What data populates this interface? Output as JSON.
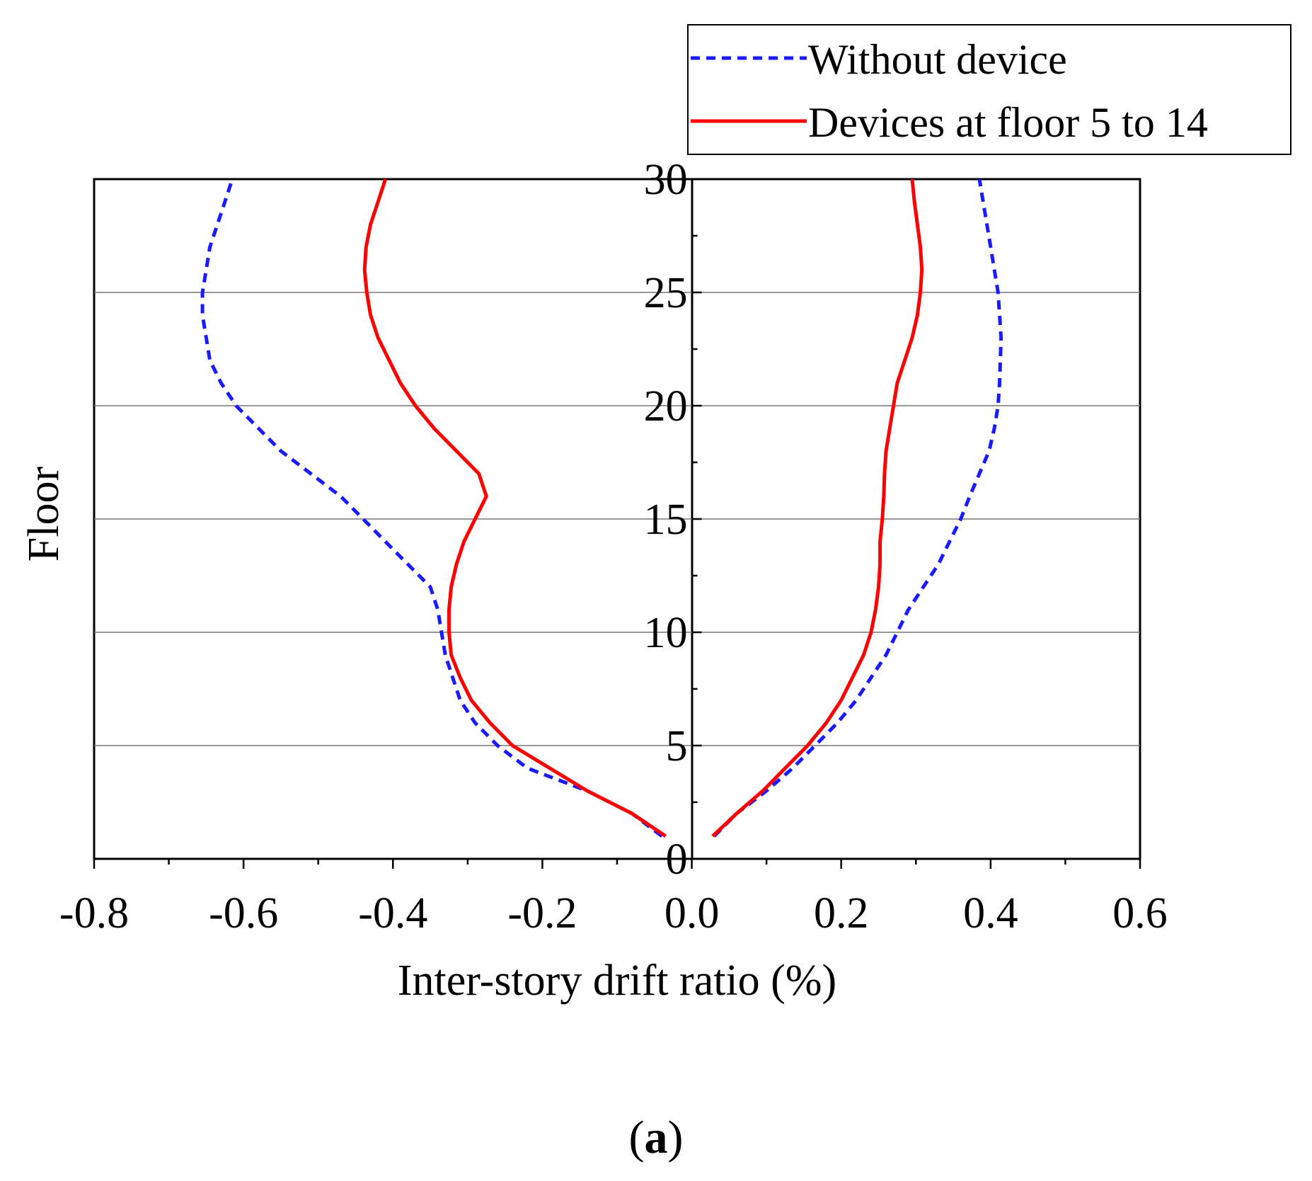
{
  "chart_data": {
    "type": "line",
    "orientation": "vertical-profile",
    "xlabel": "Inter-story drift ratio (%)",
    "ylabel": "Floor",
    "xlim": [
      -0.8,
      0.6
    ],
    "ylim": [
      0,
      30
    ],
    "x_ticks": [
      "-0.8",
      "-0.6",
      "-0.4",
      "-0.2",
      "0.0",
      "0.2",
      "0.4",
      "0.6"
    ],
    "y_ticks": [
      "0",
      "5",
      "10",
      "15",
      "20",
      "25",
      "30"
    ],
    "grid": "horizontal",
    "legend_position": "top-right",
    "caption_open": "(",
    "caption_letter": "a",
    "caption_close": ")",
    "colors": {
      "without_device": "#1a1aff",
      "with_devices": "#ff0000"
    },
    "series": [
      {
        "name": "Without device",
        "style": "dashed",
        "side": "negative",
        "points": [
          [
            -0.04,
            1
          ],
          [
            -0.08,
            2
          ],
          [
            -0.14,
            3
          ],
          [
            -0.22,
            4
          ],
          [
            -0.26,
            5
          ],
          [
            -0.29,
            6
          ],
          [
            -0.31,
            7
          ],
          [
            -0.32,
            8
          ],
          [
            -0.33,
            9
          ],
          [
            -0.335,
            10
          ],
          [
            -0.34,
            11
          ],
          [
            -0.35,
            12
          ],
          [
            -0.38,
            13
          ],
          [
            -0.41,
            14
          ],
          [
            -0.44,
            15
          ],
          [
            -0.47,
            16
          ],
          [
            -0.51,
            17
          ],
          [
            -0.55,
            18
          ],
          [
            -0.58,
            19
          ],
          [
            -0.61,
            20
          ],
          [
            -0.63,
            21
          ],
          [
            -0.645,
            22
          ],
          [
            -0.65,
            23
          ],
          [
            -0.655,
            24
          ],
          [
            -0.655,
            25
          ],
          [
            -0.65,
            26
          ],
          [
            -0.645,
            27
          ],
          [
            -0.635,
            28
          ],
          [
            -0.625,
            29
          ],
          [
            -0.615,
            30
          ]
        ]
      },
      {
        "name": "Devices at floor 5 to 14",
        "style": "solid",
        "side": "negative",
        "points": [
          [
            -0.035,
            1
          ],
          [
            -0.08,
            2
          ],
          [
            -0.14,
            3
          ],
          [
            -0.19,
            4
          ],
          [
            -0.24,
            5
          ],
          [
            -0.27,
            6
          ],
          [
            -0.295,
            7
          ],
          [
            -0.31,
            8
          ],
          [
            -0.322,
            9
          ],
          [
            -0.325,
            10
          ],
          [
            -0.325,
            11
          ],
          [
            -0.322,
            12
          ],
          [
            -0.315,
            13
          ],
          [
            -0.305,
            14
          ],
          [
            -0.29,
            15
          ],
          [
            -0.275,
            16
          ],
          [
            -0.285,
            17
          ],
          [
            -0.315,
            18
          ],
          [
            -0.345,
            19
          ],
          [
            -0.37,
            20
          ],
          [
            -0.39,
            21
          ],
          [
            -0.405,
            22
          ],
          [
            -0.42,
            23
          ],
          [
            -0.43,
            24
          ],
          [
            -0.435,
            25
          ],
          [
            -0.438,
            26
          ],
          [
            -0.436,
            27
          ],
          [
            -0.43,
            28
          ],
          [
            -0.42,
            29
          ],
          [
            -0.41,
            30
          ]
        ]
      },
      {
        "name": "Without device",
        "style": "dashed",
        "side": "positive",
        "points": [
          [
            0.03,
            1
          ],
          [
            0.06,
            2
          ],
          [
            0.1,
            3
          ],
          [
            0.135,
            4
          ],
          [
            0.165,
            5
          ],
          [
            0.195,
            6
          ],
          [
            0.22,
            7
          ],
          [
            0.24,
            8
          ],
          [
            0.26,
            9
          ],
          [
            0.275,
            10
          ],
          [
            0.29,
            11
          ],
          [
            0.31,
            12
          ],
          [
            0.33,
            13
          ],
          [
            0.345,
            14
          ],
          [
            0.36,
            15
          ],
          [
            0.372,
            16
          ],
          [
            0.385,
            17
          ],
          [
            0.398,
            18
          ],
          [
            0.405,
            19
          ],
          [
            0.41,
            20
          ],
          [
            0.412,
            21
          ],
          [
            0.413,
            22
          ],
          [
            0.414,
            23
          ],
          [
            0.412,
            24
          ],
          [
            0.41,
            25
          ],
          [
            0.405,
            26
          ],
          [
            0.4,
            27
          ],
          [
            0.395,
            28
          ],
          [
            0.39,
            29
          ],
          [
            0.385,
            30
          ]
        ]
      },
      {
        "name": "Devices at floor 5 to 14",
        "style": "solid",
        "side": "positive",
        "points": [
          [
            0.028,
            1
          ],
          [
            0.06,
            2
          ],
          [
            0.095,
            3
          ],
          [
            0.125,
            4
          ],
          [
            0.155,
            5
          ],
          [
            0.18,
            6
          ],
          [
            0.2,
            7
          ],
          [
            0.215,
            8
          ],
          [
            0.23,
            9
          ],
          [
            0.24,
            10
          ],
          [
            0.246,
            11
          ],
          [
            0.25,
            12
          ],
          [
            0.252,
            13
          ],
          [
            0.252,
            14
          ],
          [
            0.255,
            15
          ],
          [
            0.257,
            16
          ],
          [
            0.258,
            17
          ],
          [
            0.26,
            18
          ],
          [
            0.265,
            19
          ],
          [
            0.27,
            20
          ],
          [
            0.275,
            21
          ],
          [
            0.285,
            22
          ],
          [
            0.295,
            23
          ],
          [
            0.302,
            24
          ],
          [
            0.306,
            25
          ],
          [
            0.308,
            26
          ],
          [
            0.306,
            27
          ],
          [
            0.302,
            28
          ],
          [
            0.298,
            29
          ],
          [
            0.295,
            30
          ]
        ]
      }
    ]
  }
}
